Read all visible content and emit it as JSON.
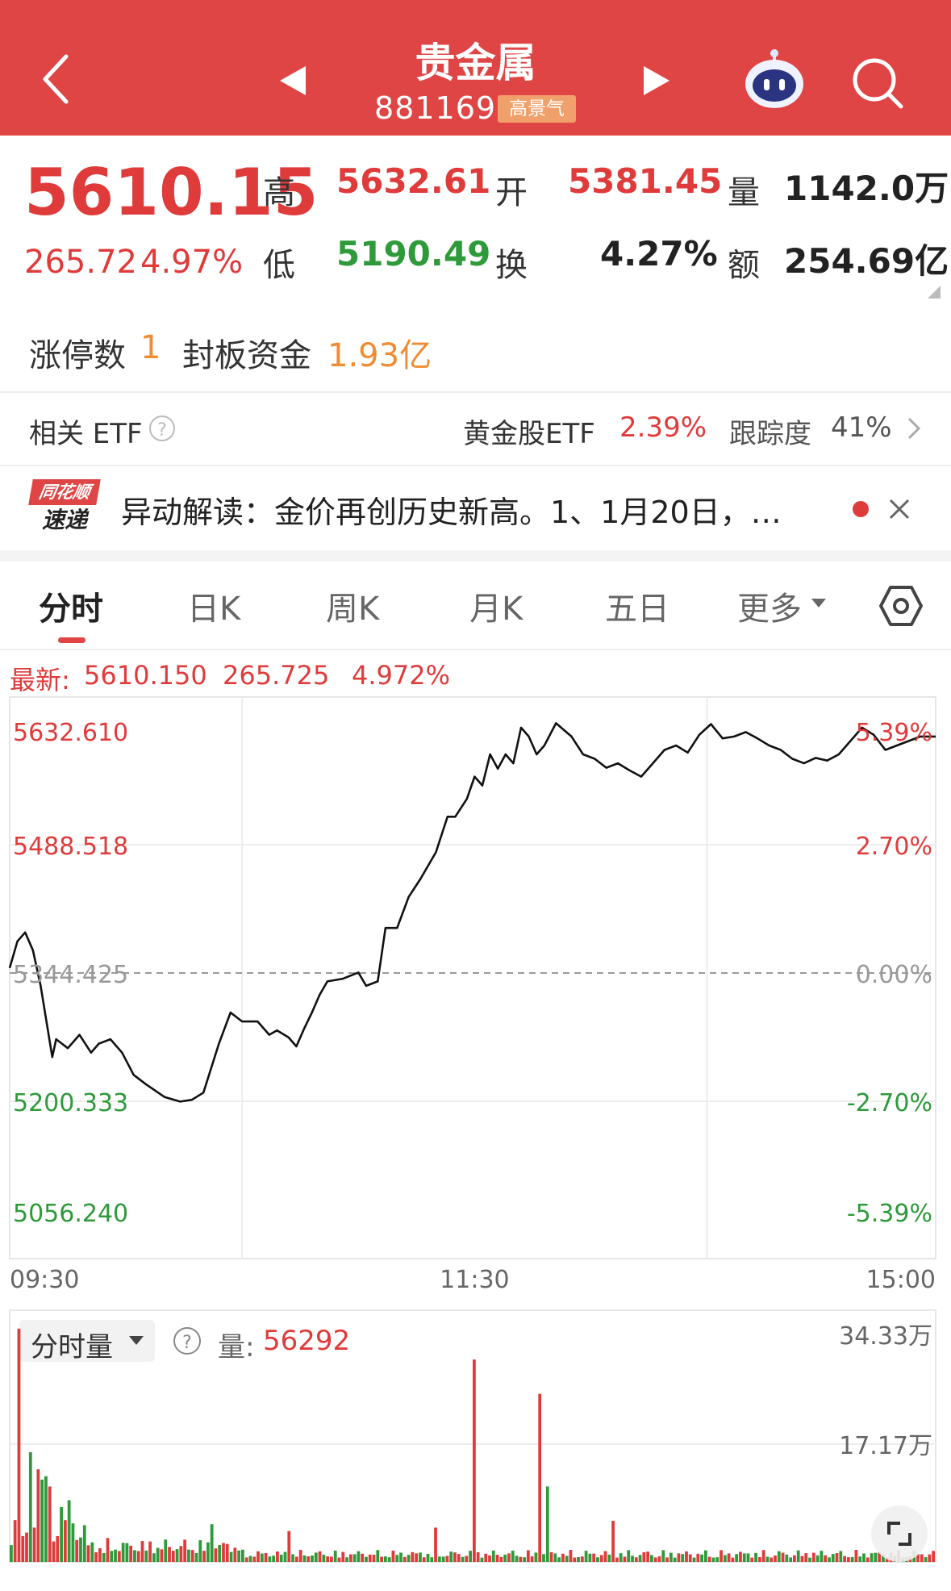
{
  "header": {
    "title": "贵金属",
    "code": "881169",
    "tag": "高景气"
  },
  "quote": {
    "price": "5610.15",
    "change": "265.72",
    "change_pct": "4.97%",
    "high_label": "高",
    "high": "5632.61",
    "open_label": "开",
    "open": "5381.45",
    "volume_label": "量",
    "volume": "1142.0万",
    "low_label": "低",
    "low": "5190.49",
    "turnover_label": "换",
    "turnover": "4.27%",
    "amount_label": "额",
    "amount": "254.69亿"
  },
  "limit": {
    "count_label": "涨停数",
    "count": "1",
    "fund_label": "封板资金",
    "fund": "1.93亿"
  },
  "etf": {
    "label": "相关 ETF",
    "name": "黄金股ETF",
    "pct": "2.39%",
    "track_label": "跟踪度",
    "track": "41%"
  },
  "news": {
    "logo_top": "同花顺",
    "logo_bottom": "速递",
    "text": "异动解读：金价再创历史新高。1、1月20日，…"
  },
  "tabs": [
    "分时",
    "日K",
    "周K",
    "月K",
    "五日",
    "更多"
  ],
  "colors": {
    "header": "#e04545",
    "up": "#e03b3b",
    "down": "#2e9a3a",
    "line": "#111111"
  },
  "chart_latest": {
    "label": "最新:",
    "price": "5610.150",
    "change": "265.725",
    "pct": "4.972%"
  },
  "chart_data": [
    {
      "type": "line",
      "title": "",
      "y_ticks": [
        "5632.610",
        "5488.518",
        "5344.425",
        "5200.333",
        "5056.240"
      ],
      "y_ticks_right": [
        "5.39%",
        "2.70%",
        "0.00%",
        "-2.70%",
        "-5.39%"
      ],
      "x_ticks": [
        "09:30",
        "11:30",
        "15:00"
      ],
      "ylim": [
        5056.24,
        5632.61
      ],
      "prev_close": 5344.425,
      "n_points": 240,
      "x": [
        0,
        2,
        4,
        6,
        8,
        11,
        12,
        15,
        18,
        21,
        23,
        26,
        29,
        32,
        35,
        40,
        44,
        47,
        50,
        54,
        57,
        60,
        64,
        67,
        69,
        72,
        74,
        76,
        78,
        80,
        82,
        86,
        90,
        92,
        95,
        97,
        100,
        103,
        106,
        110,
        113,
        115,
        118,
        120,
        122,
        124,
        126,
        128,
        130,
        132,
        134,
        136,
        138,
        141,
        145,
        148,
        151,
        154,
        157,
        160,
        163,
        166,
        169,
        172,
        175,
        178,
        181,
        184,
        187,
        190,
        193,
        196,
        199,
        202,
        205,
        208,
        211,
        214,
        217,
        220,
        223,
        226,
        229,
        232,
        235,
        239
      ],
      "y": [
        5350,
        5380,
        5390,
        5370,
        5330,
        5250,
        5270,
        5260,
        5275,
        5255,
        5265,
        5270,
        5255,
        5230,
        5220,
        5205,
        5200,
        5202,
        5210,
        5265,
        5300,
        5290,
        5290,
        5275,
        5280,
        5272,
        5262,
        5282,
        5300,
        5320,
        5335,
        5338,
        5345,
        5330,
        5335,
        5395,
        5395,
        5430,
        5450,
        5480,
        5520,
        5520,
        5540,
        5565,
        5555,
        5590,
        5574,
        5590,
        5580,
        5620,
        5610,
        5590,
        5600,
        5625,
        5610,
        5590,
        5585,
        5575,
        5580,
        5572,
        5565,
        5580,
        5595,
        5600,
        5592,
        5612,
        5624,
        5608,
        5610,
        5615,
        5608,
        5600,
        5595,
        5585,
        5580,
        5586,
        5583,
        5590,
        5605,
        5620,
        5612,
        5595,
        5600,
        5605,
        5610,
        5610
      ]
    },
    {
      "type": "bar",
      "title": "分时量",
      "value_label": "量:",
      "value": "56292",
      "y_ticks": [
        "34.33万",
        "17.17万"
      ],
      "ylim": [
        0,
        343300
      ],
      "n_bars": 240,
      "spikes": [
        {
          "x": 2,
          "v": 340000,
          "up": true
        },
        {
          "x": 5,
          "v": 160000,
          "up": false
        },
        {
          "x": 7,
          "v": 135000,
          "up": true
        },
        {
          "x": 8,
          "v": 120000,
          "up": false
        },
        {
          "x": 9,
          "v": 125000,
          "up": false
        },
        {
          "x": 10,
          "v": 110000,
          "up": true
        },
        {
          "x": 13,
          "v": 80000,
          "up": false
        },
        {
          "x": 15,
          "v": 90000,
          "up": false
        },
        {
          "x": 52,
          "v": 55000,
          "up": false
        },
        {
          "x": 72,
          "v": 45000,
          "up": true
        },
        {
          "x": 110,
          "v": 50000,
          "up": true
        },
        {
          "x": 120,
          "v": 295000,
          "up": true
        },
        {
          "x": 137,
          "v": 245000,
          "up": true
        },
        {
          "x": 139,
          "v": 110000,
          "up": false
        },
        {
          "x": 156,
          "v": 60000,
          "up": true
        }
      ]
    }
  ]
}
